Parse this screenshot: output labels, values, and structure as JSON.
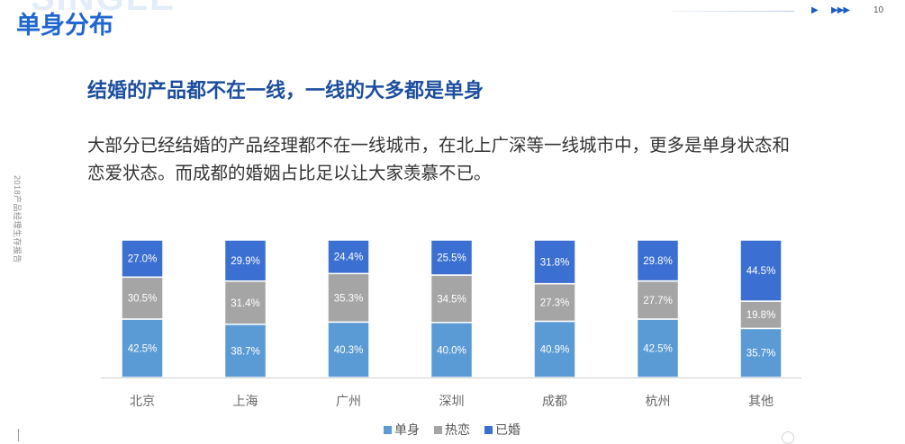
{
  "slide": {
    "watermark": "SINGLE",
    "title": "单身分布",
    "page_number": "10",
    "side_text": "2018产品经理生存报告",
    "subtitle": "结婚的产品都不在一线，一线的大多都是单身",
    "body_lines": [
      "大部分已经结婚的产品经理都不在一线城市，在北上广深等一线城市中，更多是单身状态和",
      "恋爱状态。而成都的婚姻占比足以让大家羡慕不已。"
    ]
  },
  "icons": {
    "nav_single": "play-triangle-icon",
    "nav_triple": "triple-play-triangle-icon"
  },
  "colors": {
    "title": "#1f66d1",
    "subtitle": "#1c4e9e",
    "accent": "#1b5fc6",
    "body_text": "#333333"
  },
  "chart_data": {
    "type": "bar",
    "stacked": true,
    "categories": [
      "北京",
      "上海",
      "广州",
      "深圳",
      "成都",
      "杭州",
      "其他"
    ],
    "series": [
      {
        "name": "单身",
        "color": "#5b9bd5",
        "values": [
          42.5,
          38.7,
          40.3,
          40.0,
          40.9,
          42.5,
          35.7
        ]
      },
      {
        "name": "热恋",
        "color": "#a5a5a5",
        "values": [
          30.5,
          31.4,
          35.3,
          34.5,
          27.3,
          27.7,
          19.8
        ]
      },
      {
        "name": "已婚",
        "color": "#3b6fd2",
        "values": [
          27.0,
          29.9,
          24.4,
          25.5,
          31.8,
          29.8,
          44.5
        ]
      }
    ],
    "value_suffix": "%",
    "ylim": [
      0,
      100
    ],
    "legend": "bottom",
    "grid": false
  }
}
